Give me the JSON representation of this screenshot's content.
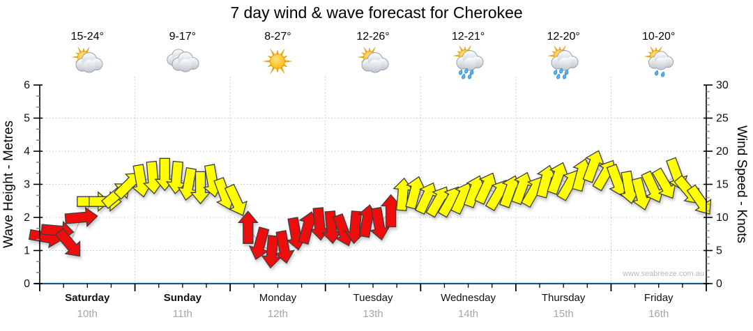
{
  "page": {
    "title": "7 day wind & wave forecast for Cherokee",
    "watermark": "www.seabreeze.com.au"
  },
  "days": [
    {
      "name": "Saturday",
      "date": "10th",
      "temp": "15-24°",
      "icon": "partly-cloudy",
      "weekend": true
    },
    {
      "name": "Sunday",
      "date": "11th",
      "temp": "9-17°",
      "icon": "cloudy",
      "weekend": true
    },
    {
      "name": "Monday",
      "date": "12th",
      "temp": "8-27°",
      "icon": "sunny",
      "weekend": false
    },
    {
      "name": "Tuesday",
      "date": "13th",
      "temp": "12-26°",
      "icon": "partly-cloudy",
      "weekend": false
    },
    {
      "name": "Wednesday",
      "date": "14th",
      "temp": "12-21°",
      "icon": "showers",
      "weekend": false
    },
    {
      "name": "Thursday",
      "date": "15th",
      "temp": "12-20°",
      "icon": "showers",
      "weekend": false
    },
    {
      "name": "Friday",
      "date": "16th",
      "temp": "10-20°",
      "icon": "light-showers",
      "weekend": false
    }
  ],
  "axes": {
    "left": {
      "title": "Wave Height - Metres",
      "ticks": [
        0,
        1,
        2,
        3,
        4,
        5,
        6
      ],
      "range": [
        0,
        6
      ]
    },
    "right": {
      "title": "Wind Speed - Knots",
      "ticks": [
        0,
        5,
        10,
        15,
        20,
        25,
        30
      ],
      "range": [
        0,
        30
      ]
    }
  },
  "chart_data": {
    "type": "scatter",
    "title": "7 day wind & wave forecast for Cherokee",
    "x": "3-hourly wind forecast points, 8 per day for 7 days (Sat 10th - Fri 16th)",
    "ylabel_left": "Wave Height - Metres",
    "ylabel_right": "Wind Speed - Knots",
    "ylim_left": [
      0,
      6
    ],
    "ylim_right": [
      0,
      30
    ],
    "grid": "dotted horizontal lines every 5 knots (1 m), dotted vertical lines at day boundaries",
    "legend": "block arrows plotted at wind speed (knots); rotation = wind direction (0 = pointing up/N, 90 = pointing right/E); red = lighter winds (< 12 kn), yellow = stronger winds (>= 12 kn)",
    "points_per_day": 8,
    "wind_kn": [
      7,
      8,
      6,
      10,
      12.4,
      12.4,
      13.5,
      15,
      15.5,
      16,
      16.5,
      16,
      15,
      14.5,
      15.5,
      13.5,
      12.5,
      8.5,
      6,
      4.8,
      5.5,
      7.5,
      8.5,
      9,
      8.5,
      8,
      8.5,
      9.5,
      9,
      11,
      13.5,
      13.8,
      13,
      12.5,
      12.5,
      13,
      14,
      14.5,
      13.5,
      14,
      14.5,
      14,
      15.5,
      16,
      15,
      16.5,
      17.8,
      16.5,
      15.5,
      14.5,
      13.5,
      14.5,
      15,
      16.5,
      14,
      12.5
    ],
    "wind_dir_deg": [
      100,
      95,
      140,
      85,
      90,
      90,
      50,
      45,
      170,
      175,
      180,
      185,
      190,
      180,
      170,
      160,
      155,
      0,
      195,
      185,
      170,
      170,
      15,
      175,
      175,
      160,
      185,
      10,
      170,
      0,
      5,
      15,
      25,
      30,
      30,
      25,
      20,
      25,
      30,
      20,
      20,
      30,
      15,
      20,
      30,
      15,
      20,
      30,
      160,
      170,
      165,
      155,
      150,
      160,
      140,
      145
    ],
    "yellow_min_kn": 12
  },
  "colors": {
    "arrow_red": "#ee1010",
    "arrow_yellow": "#ffff00",
    "arrow_outline": "#3c3c3c",
    "axis_line": "#000000",
    "axis_bottom": "#16598f",
    "grid": "#c3c3c3",
    "minor_tick": "#8a8a8a",
    "trend_line": "#c6c6c6",
    "tick_text": "#111111",
    "date_text": "#a6a6a6",
    "watermark_text": "#b4b9bf"
  }
}
